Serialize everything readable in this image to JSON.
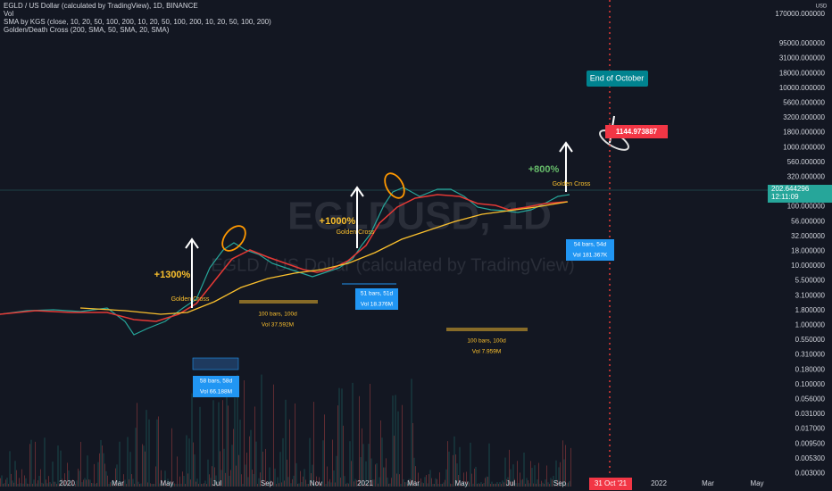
{
  "legend": [
    "EGLD / US Dollar (calculated by TradingView), 1D, BINANCE",
    "Vol",
    "SMA by KGS (close, 10, 20, 50, 100, 200, 10, 20, 50, 100, 200, 10, 20, 50, 100, 200)",
    "Golden/Death Cross (200, SMA, 50, SMA, 20, SMA)"
  ],
  "watermark": {
    "symbol": "EGLDUSD, 1D",
    "name": "EGLD / US Dollar (calculated by TradingView)"
  },
  "price_axis": {
    "unit": "USD",
    "top": "170000.000000",
    "labels": [
      "95000.000000",
      "31000.000000",
      "18000.000000",
      "10000.000000",
      "5600.000000",
      "3200.000000",
      "1800.000000",
      "1000.000000",
      "560.000000",
      "320.000000",
      "",
      "100.000000",
      "56.000000",
      "32.000000",
      "18.000000",
      "10.000000",
      "5.500000",
      "3.100000",
      "1.800000",
      "1.000000",
      "0.550000",
      "0.310000",
      "0.180000",
      "0.100000",
      "0.056000",
      "0.031000",
      "0.017000",
      "0.009500",
      "0.005300",
      "0.003000"
    ],
    "last_price": "202.644296",
    "countdown": "12:11:09"
  },
  "time_axis": [
    "2020",
    "Mar",
    "May",
    "Jul",
    "Sep",
    "Nov",
    "2021",
    "Mar",
    "May",
    "Jul",
    "Sep",
    "31 Oct '21",
    "2022",
    "Mar",
    "May"
  ],
  "annotations": {
    "gain1": "+1300%",
    "gain2": "+1000%",
    "gain3": "+800%",
    "golden_cross": "Golden Cross",
    "range1": [
      "58 bars, 58d",
      "Vol 66.188M"
    ],
    "range2": [
      "100 bars, 100d",
      "Vol 37.592M"
    ],
    "range3": [
      "51 bars, 51d",
      "Vol 18.376M"
    ],
    "range4": [
      "100 bars, 100d",
      "Vol 7.959M"
    ],
    "range5": [
      "54 bars, 54d",
      "Vol 181.367K"
    ],
    "callout": "End of October",
    "target": "1144.973887"
  }
}
